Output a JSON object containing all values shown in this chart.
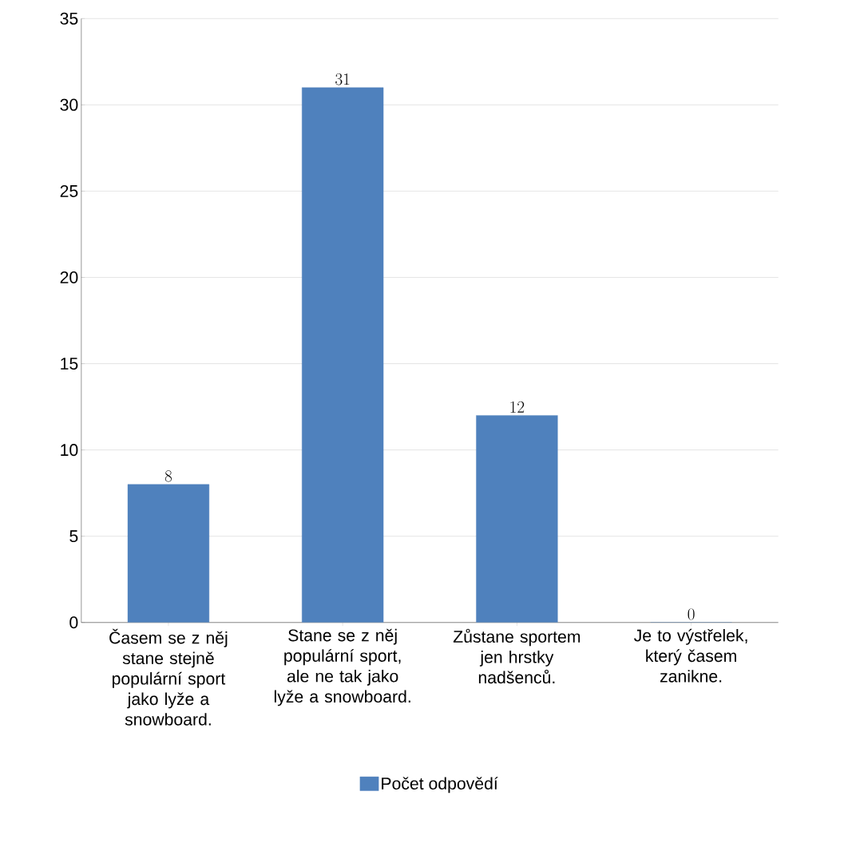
{
  "chart_data": {
    "type": "bar",
    "categories": [
      "Časem se z něj stane stejně populární sport jako lyže a snowboard.",
      "Stane se z něj populární sport, ale ne tak jako lyže a snowboard.",
      "Zůstane sportem jen hrstky nadšenců.",
      "Je to výstřelek, který časem zanikne."
    ],
    "series": [
      {
        "name": "Počet odpovědí",
        "color": "#4f81bd",
        "values": [
          8,
          31,
          12,
          0
        ]
      }
    ],
    "ylim": [
      0,
      35
    ],
    "yticks": [
      0,
      5,
      10,
      15,
      20,
      25,
      30,
      35
    ],
    "grid": "y",
    "legend": "bottom",
    "data_labels": true
  }
}
